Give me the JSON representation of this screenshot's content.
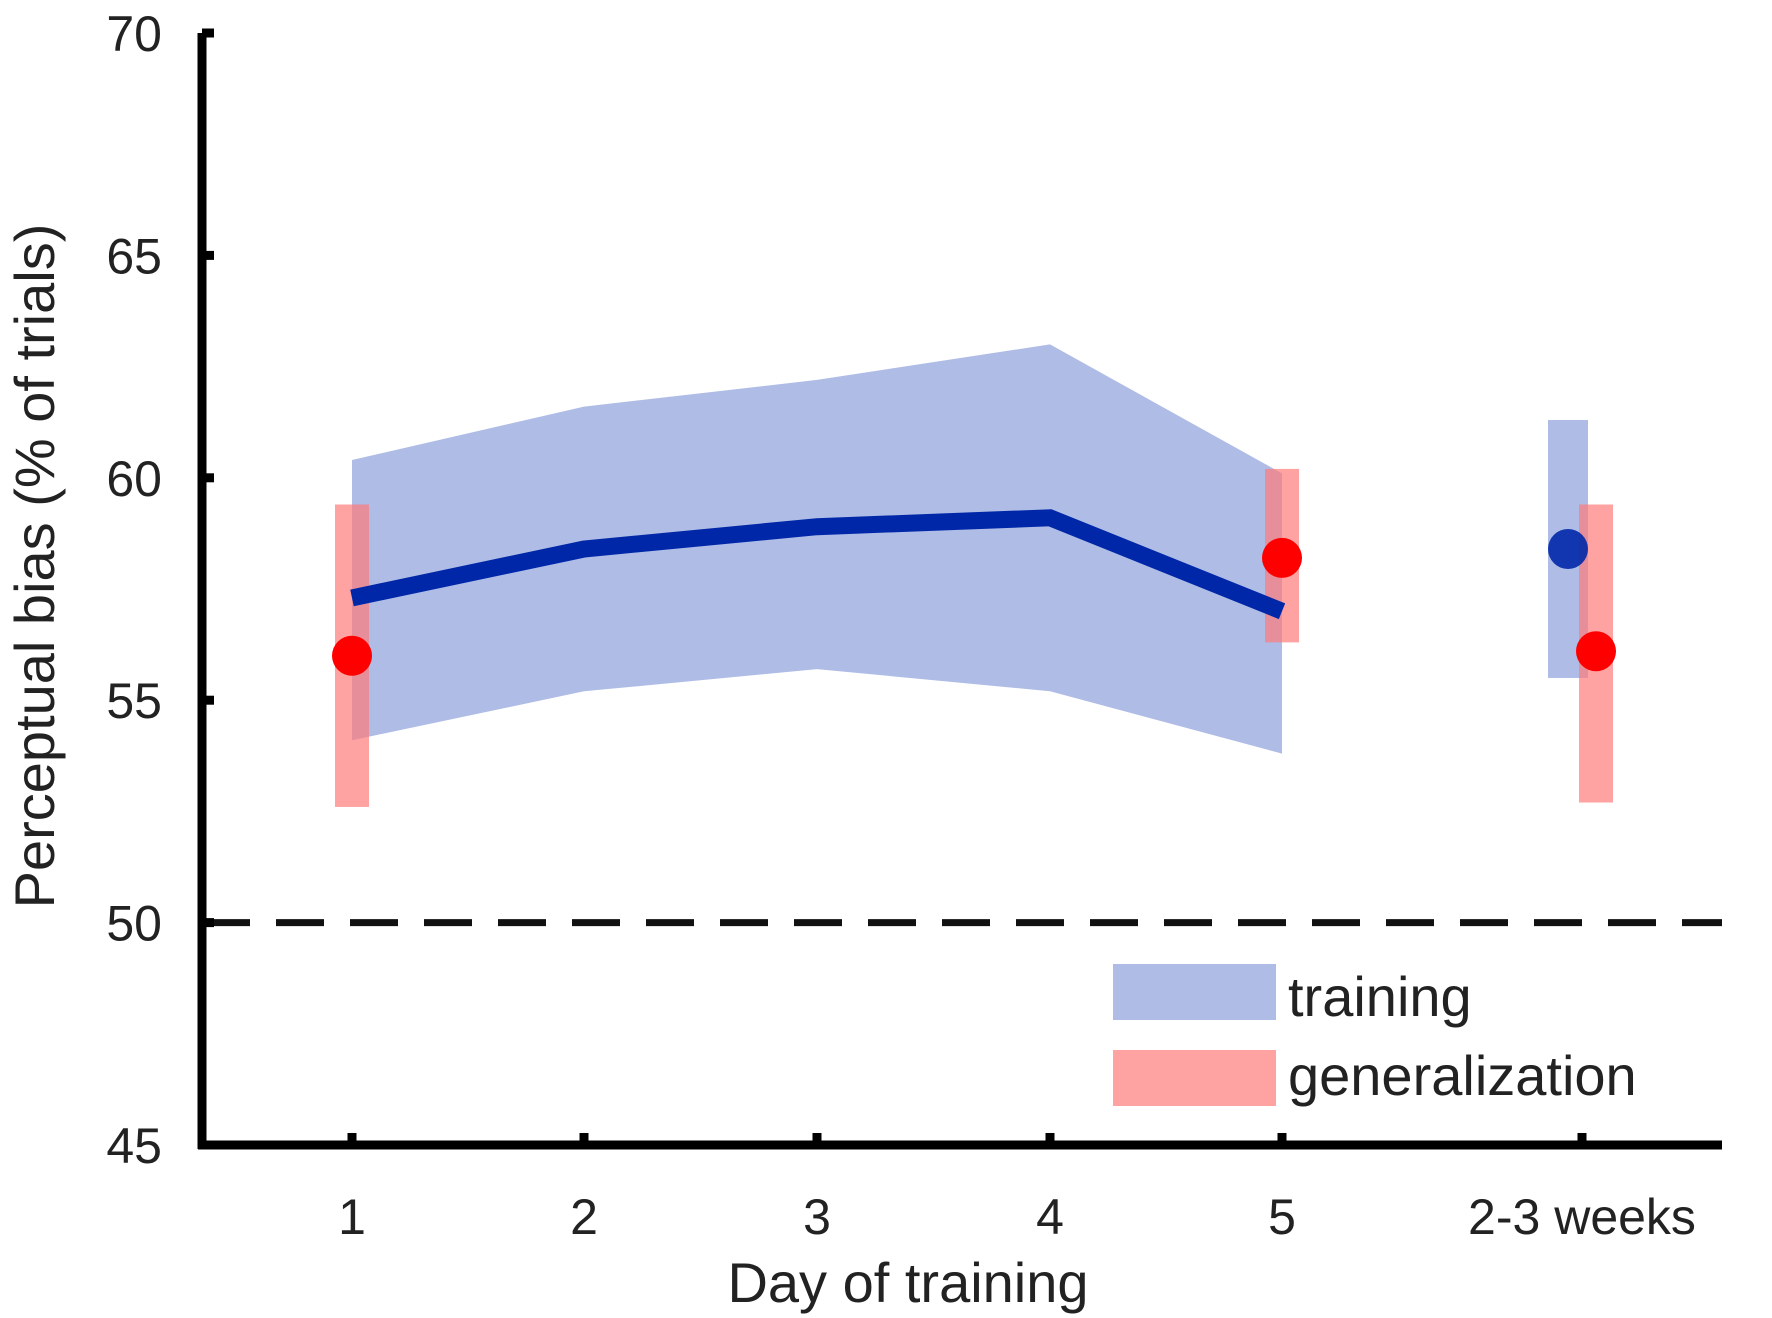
{
  "chart_data": {
    "type": "line",
    "title": "",
    "xlabel": "Day of training",
    "ylabel": "Perceptual bias (% of trials)",
    "ylim": [
      45,
      70
    ],
    "yticks": [
      45,
      50,
      55,
      60,
      65,
      70
    ],
    "categories": [
      "1",
      "2",
      "3",
      "4",
      "5",
      "2-3 weeks"
    ],
    "grid": false,
    "legend_position": "bottom-right",
    "reference_line": {
      "y": 50,
      "style": "dashed"
    },
    "series": [
      {
        "name": "training",
        "color": "#0027a8",
        "band_color": "#8ca0dc",
        "x": [
          "1",
          "2",
          "3",
          "4",
          "5"
        ],
        "mean": [
          57.3,
          58.4,
          58.9,
          59.1,
          57.0
        ],
        "upper": [
          60.4,
          61.6,
          62.2,
          63.0,
          60.1
        ],
        "lower": [
          54.1,
          55.2,
          55.7,
          55.2,
          53.8
        ]
      },
      {
        "name": "training",
        "x": [
          "2-3 weeks"
        ],
        "mean": [
          58.4
        ],
        "upper": [
          61.3
        ],
        "lower": [
          55.5
        ],
        "color": "#0027a8",
        "band_color": "#8ca0dc"
      },
      {
        "name": "generalization",
        "color": "#ff0000",
        "band_color": "#ff7a7a",
        "x": [
          "1",
          "5",
          "2-3 weeks"
        ],
        "mean": [
          56.0,
          58.2,
          56.1
        ],
        "upper": [
          59.4,
          60.2,
          59.4
        ],
        "lower": [
          52.6,
          56.3,
          52.7
        ]
      }
    ],
    "legend": [
      {
        "label": "training",
        "color": "#8ca0dc"
      },
      {
        "label": "generalization",
        "color": "#ff7a7a"
      }
    ]
  }
}
